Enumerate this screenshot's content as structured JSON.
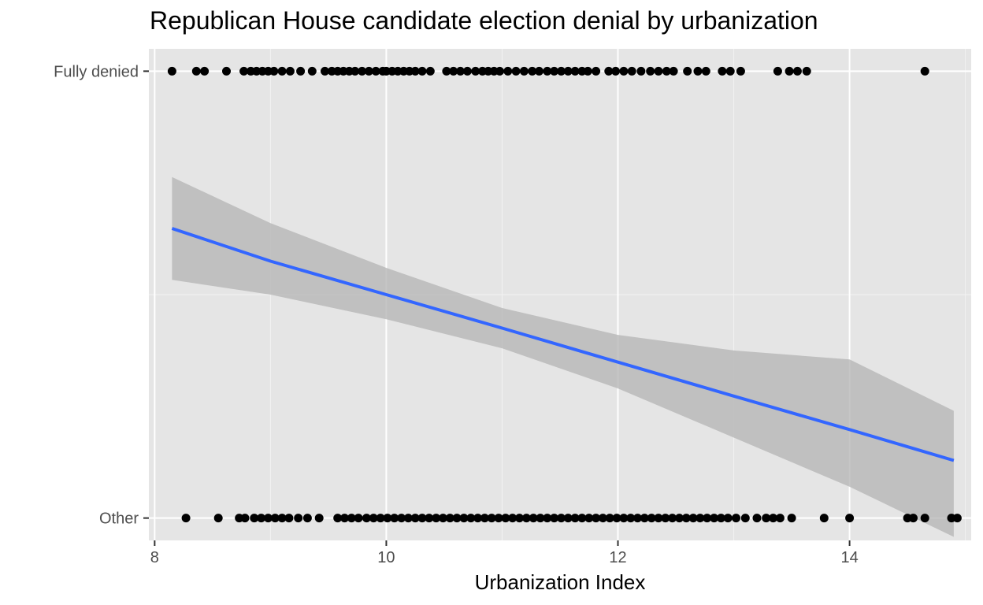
{
  "chart_data": {
    "type": "scatter",
    "title": "Republican House candidate election denial by urbanization",
    "xlabel": "Urbanization Index",
    "ylabel": "",
    "xlim": [
      7.95,
      15.05
    ],
    "ylim": [
      0.95,
      2.05
    ],
    "x_ticks": [
      8,
      10,
      12,
      14
    ],
    "x_tick_labels": [
      "8",
      "10",
      "12",
      "14"
    ],
    "y_ticks": [
      1,
      2
    ],
    "y_tick_labels": [
      "Other",
      "Fully denied"
    ],
    "grid": true,
    "background_color": "#e5e5e5",
    "point_color": "#000000",
    "series": [
      {
        "category": "Fully denied",
        "y": 2,
        "x": [
          8.15,
          8.36,
          8.43,
          8.62,
          8.77,
          8.83,
          8.88,
          8.93,
          8.98,
          9.03,
          9.1,
          9.17,
          9.26,
          9.36,
          9.47,
          9.53,
          9.58,
          9.63,
          9.68,
          9.73,
          9.79,
          9.85,
          9.91,
          9.97,
          10.0,
          10.05,
          10.1,
          10.15,
          10.2,
          10.25,
          10.31,
          10.38,
          10.52,
          10.58,
          10.64,
          10.7,
          10.77,
          10.83,
          10.88,
          10.93,
          10.98,
          11.05,
          11.12,
          11.19,
          11.26,
          11.32,
          11.39,
          11.45,
          11.51,
          11.57,
          11.63,
          11.69,
          11.74,
          11.81,
          11.92,
          11.98,
          12.05,
          12.12,
          12.2,
          12.28,
          12.35,
          12.42,
          12.48,
          12.6,
          12.69,
          12.76,
          12.9,
          12.97,
          13.06,
          13.38,
          13.48,
          13.55,
          13.63,
          14.65
        ]
      },
      {
        "category": "Other",
        "y": 1,
        "x": [
          8.27,
          8.55,
          8.73,
          8.78,
          8.86,
          8.92,
          8.98,
          9.04,
          9.1,
          9.16,
          9.24,
          9.32,
          9.42,
          9.58,
          9.64,
          9.7,
          9.76,
          9.83,
          9.89,
          9.95,
          10.01,
          10.07,
          10.13,
          10.19,
          10.25,
          10.31,
          10.37,
          10.43,
          10.49,
          10.55,
          10.61,
          10.67,
          10.73,
          10.79,
          10.85,
          10.91,
          10.97,
          11.03,
          11.09,
          11.15,
          11.21,
          11.27,
          11.33,
          11.39,
          11.45,
          11.51,
          11.57,
          11.63,
          11.69,
          11.75,
          11.81,
          11.87,
          11.93,
          11.99,
          12.05,
          12.11,
          12.17,
          12.23,
          12.29,
          12.35,
          12.41,
          12.47,
          12.53,
          12.59,
          12.65,
          12.71,
          12.77,
          12.83,
          12.89,
          12.95,
          13.02,
          13.1,
          13.2,
          13.28,
          13.34,
          13.4,
          13.5,
          13.78,
          14.0,
          14.5,
          14.55,
          14.65,
          14.88,
          14.93
        ]
      }
    ],
    "trend_line": {
      "method": "logistic fit",
      "color": "#3366ff",
      "ribbon_color": "#b3b3b3",
      "x": [
        8.15,
        9.0,
        10.0,
        11.0,
        12.0,
        13.0,
        14.0,
        14.9
      ],
      "y": [
        1.648,
        1.575,
        1.5,
        1.425,
        1.349,
        1.273,
        1.198,
        1.129
      ],
      "ymin": [
        1.533,
        1.5,
        1.445,
        1.38,
        1.29,
        1.18,
        1.07,
        0.958
      ],
      "ymax": [
        1.763,
        1.66,
        1.56,
        1.47,
        1.41,
        1.375,
        1.355,
        1.24
      ]
    }
  }
}
